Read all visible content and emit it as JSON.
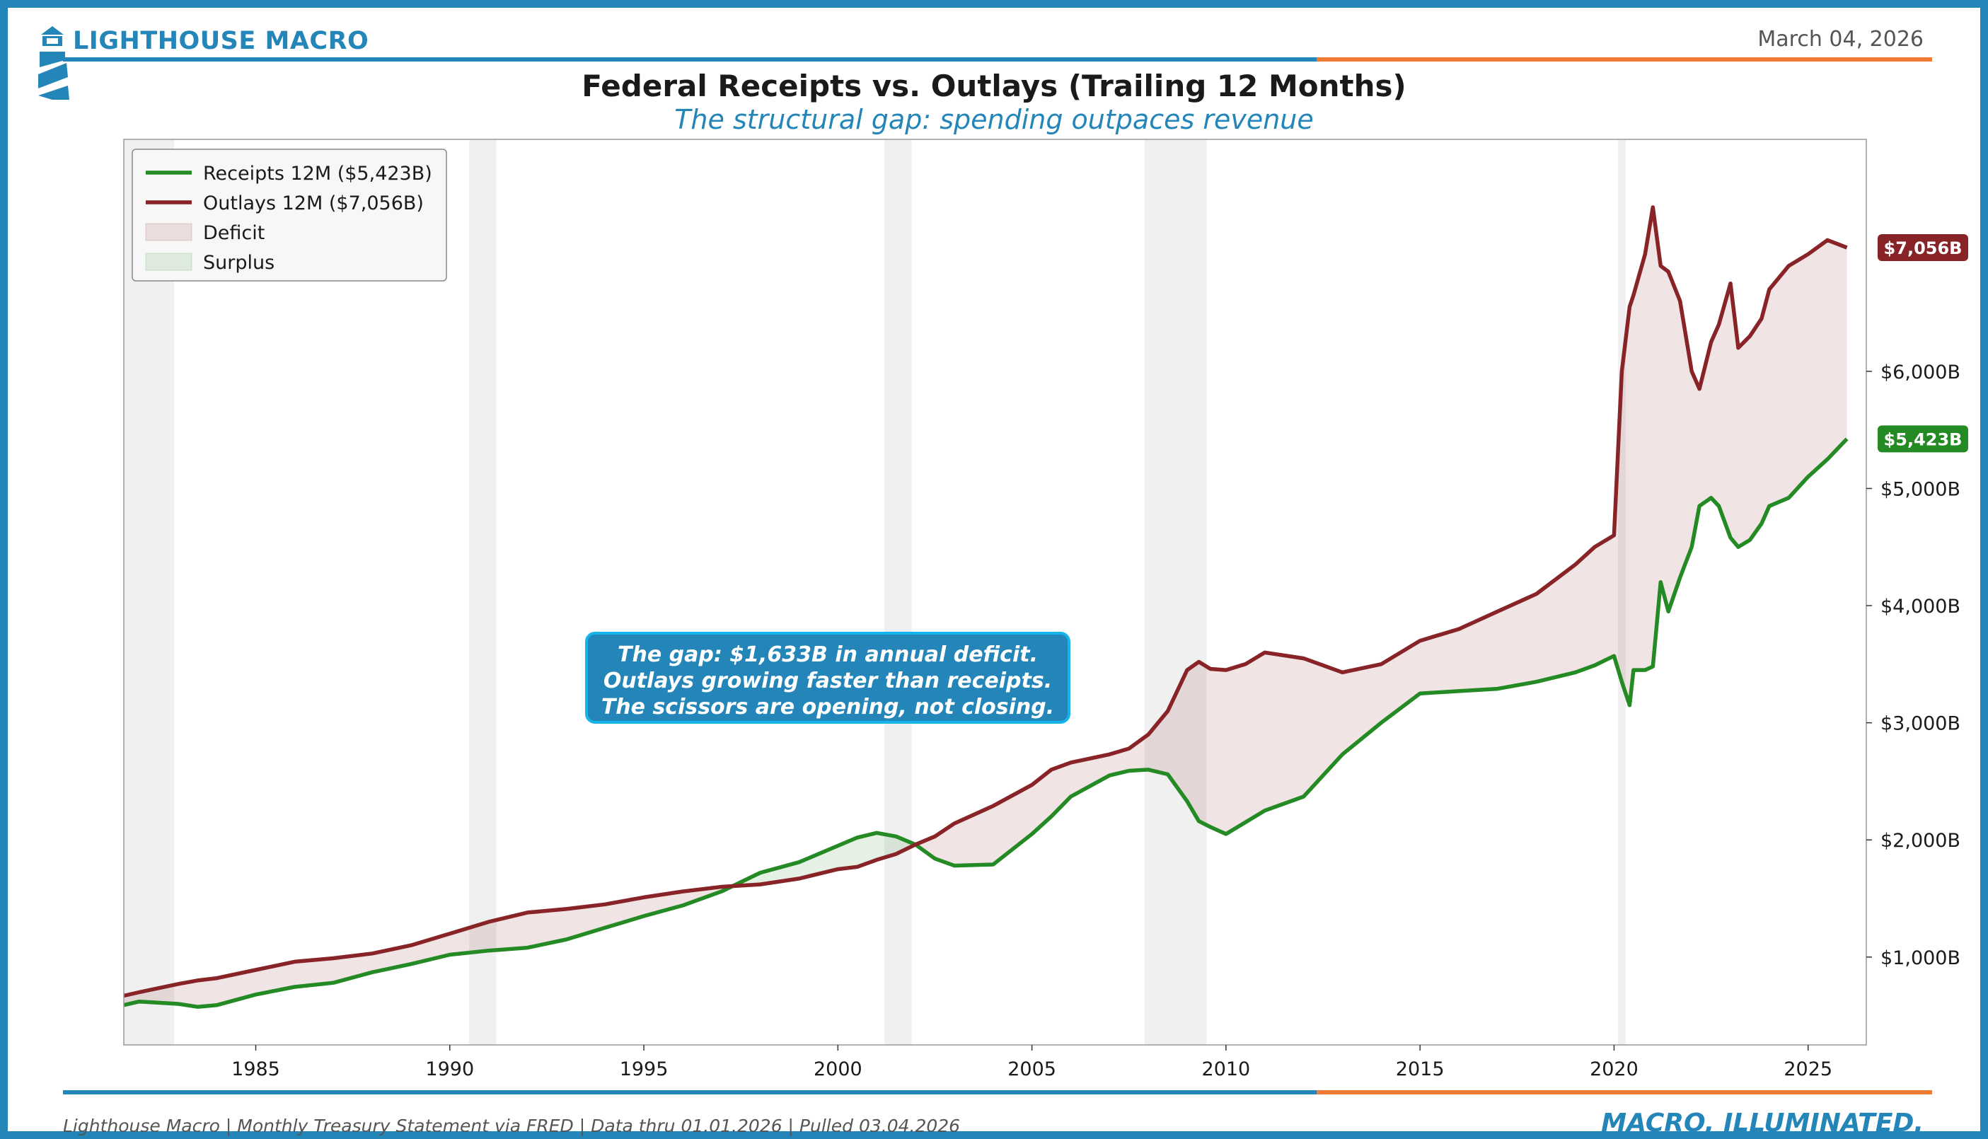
{
  "header": {
    "brand": "LIGHTHOUSE MACRO",
    "date": "March 04, 2026",
    "title": "Federal Receipts vs. Outlays (Trailing 12 Months)",
    "subtitle": "The structural gap: spending outpaces revenue"
  },
  "footer": {
    "source": "Lighthouse Macro | Monthly Treasury Statement via FRED | Data thru 01.01.2026 | Pulled 03.04.2026",
    "tagline": "MACRO, ILLUMINATED."
  },
  "colors": {
    "brand_blue": "#2385b8",
    "accent_orange": "#ee7a33",
    "receipts": "#248a24",
    "outlays": "#882428",
    "deficit_fill": "#882428",
    "surplus_fill": "#248a24",
    "recession": "#e6e6e6"
  },
  "chart_data": {
    "type": "line",
    "title": "Federal Receipts vs. Outlays (Trailing 12 Months)",
    "subtitle": "The structural gap: spending outpaces revenue",
    "xlabel": "",
    "ylabel": "",
    "xlim": [
      1981.6,
      2026.5
    ],
    "ylim": [
      250,
      7980
    ],
    "x_ticks": [
      1985,
      1990,
      1995,
      2000,
      2005,
      2010,
      2015,
      2020,
      2025
    ],
    "y_ticks": [
      1000,
      2000,
      3000,
      4000,
      5000,
      6000
    ],
    "y_tick_labels": [
      "$1,000B",
      "$2,000B",
      "$3,000B",
      "$4,000B",
      "$5,000B",
      "$6,000B"
    ],
    "y_axis_side": "right",
    "grid": false,
    "legend": {
      "placement": "top-left",
      "entries": [
        "Receipts 12M ($5,423B)",
        "Outlays 12M ($7,056B)",
        "Deficit",
        "Surplus"
      ]
    },
    "recessions": [
      [
        1981.6,
        1982.9
      ],
      [
        1990.5,
        1991.2
      ],
      [
        2001.2,
        2001.9
      ],
      [
        2007.9,
        2009.5
      ],
      [
        2020.1,
        2020.3
      ]
    ],
    "series": [
      {
        "name": "Receipts 12M ($5,423B)",
        "x": [
          1981.6,
          1982.0,
          1983.0,
          1983.5,
          1984.0,
          1985.0,
          1986.0,
          1987.0,
          1988.0,
          1989.0,
          1990.0,
          1991.0,
          1992.0,
          1993.0,
          1994.0,
          1995.0,
          1996.0,
          1997.0,
          1998.0,
          1999.0,
          2000.0,
          2000.5,
          2001.0,
          2001.5,
          2002.0,
          2002.5,
          2003.0,
          2004.0,
          2005.0,
          2005.5,
          2006.0,
          2007.0,
          2007.5,
          2008.0,
          2008.5,
          2009.0,
          2009.3,
          2009.6,
          2010.0,
          2010.5,
          2011.0,
          2012.0,
          2013.0,
          2014.0,
          2015.0,
          2016.0,
          2017.0,
          2018.0,
          2019.0,
          2019.5,
          2020.0,
          2020.2,
          2020.4,
          2020.5,
          2020.8,
          2021.0,
          2021.2,
          2021.4,
          2021.7,
          2022.0,
          2022.2,
          2022.5,
          2022.7,
          2023.0,
          2023.2,
          2023.5,
          2023.8,
          2024.0,
          2024.5,
          2025.0,
          2025.5,
          2026.0
        ],
        "values": [
          590,
          620,
          600,
          575,
          590,
          680,
          745,
          780,
          870,
          940,
          1020,
          1055,
          1080,
          1150,
          1250,
          1350,
          1440,
          1560,
          1720,
          1810,
          1950,
          2020,
          2060,
          2030,
          1960,
          1840,
          1780,
          1790,
          2050,
          2200,
          2370,
          2550,
          2590,
          2600,
          2560,
          2330,
          2160,
          2110,
          2050,
          2150,
          2250,
          2370,
          2730,
          3000,
          3250,
          3270,
          3290,
          3350,
          3430,
          3490,
          3570,
          3350,
          3150,
          3450,
          3450,
          3480,
          4200,
          3950,
          4240,
          4500,
          4850,
          4920,
          4850,
          4580,
          4500,
          4560,
          4700,
          4850,
          4920,
          5100,
          5250,
          5423
        ]
      },
      {
        "name": "Outlays 12M ($7,056B)",
        "x": [
          1981.6,
          1982.0,
          1983.0,
          1983.5,
          1984.0,
          1985.0,
          1986.0,
          1987.0,
          1988.0,
          1989.0,
          1990.0,
          1991.0,
          1992.0,
          1993.0,
          1994.0,
          1995.0,
          1996.0,
          1997.0,
          1998.0,
          1999.0,
          2000.0,
          2000.5,
          2001.0,
          2001.5,
          2002.0,
          2002.5,
          2003.0,
          2004.0,
          2005.0,
          2005.5,
          2006.0,
          2007.0,
          2007.5,
          2008.0,
          2008.5,
          2009.0,
          2009.3,
          2009.6,
          2010.0,
          2010.5,
          2011.0,
          2012.0,
          2013.0,
          2014.0,
          2015.0,
          2016.0,
          2017.0,
          2018.0,
          2019.0,
          2019.5,
          2020.0,
          2020.2,
          2020.4,
          2020.5,
          2020.8,
          2021.0,
          2021.2,
          2021.4,
          2021.7,
          2022.0,
          2022.2,
          2022.5,
          2022.7,
          2023.0,
          2023.2,
          2023.5,
          2023.8,
          2024.0,
          2024.5,
          2025.0,
          2025.5,
          2026.0
        ],
        "values": [
          670,
          700,
          770,
          800,
          820,
          890,
          960,
          990,
          1030,
          1100,
          1200,
          1300,
          1380,
          1410,
          1450,
          1510,
          1560,
          1600,
          1620,
          1670,
          1750,
          1770,
          1830,
          1880,
          1960,
          2030,
          2140,
          2290,
          2470,
          2600,
          2660,
          2730,
          2780,
          2900,
          3100,
          3450,
          3520,
          3460,
          3450,
          3500,
          3600,
          3550,
          3430,
          3500,
          3700,
          3800,
          3950,
          4100,
          4350,
          4500,
          4600,
          6000,
          6550,
          6650,
          7000,
          7400,
          6900,
          6850,
          6600,
          6000,
          5850,
          6250,
          6400,
          6750,
          6200,
          6300,
          6450,
          6700,
          6900,
          7000,
          7120,
          7056
        ]
      }
    ],
    "fill_between": [
      {
        "name": "Deficit",
        "where": "outlays > receipts"
      },
      {
        "name": "Surplus",
        "where": "receipts > outlays"
      }
    ],
    "end_labels": [
      {
        "series": "Outlays 12M ($7,056B)",
        "text": "$7,056B",
        "value": 7056
      },
      {
        "series": "Receipts 12M ($5,423B)",
        "text": "$5,423B",
        "value": 5423
      }
    ],
    "annotation": {
      "lines": [
        "The gap: $1,633B in annual deficit.",
        "Outlays growing faster than receipts.",
        "The scissors are opening, not closing."
      ]
    }
  }
}
